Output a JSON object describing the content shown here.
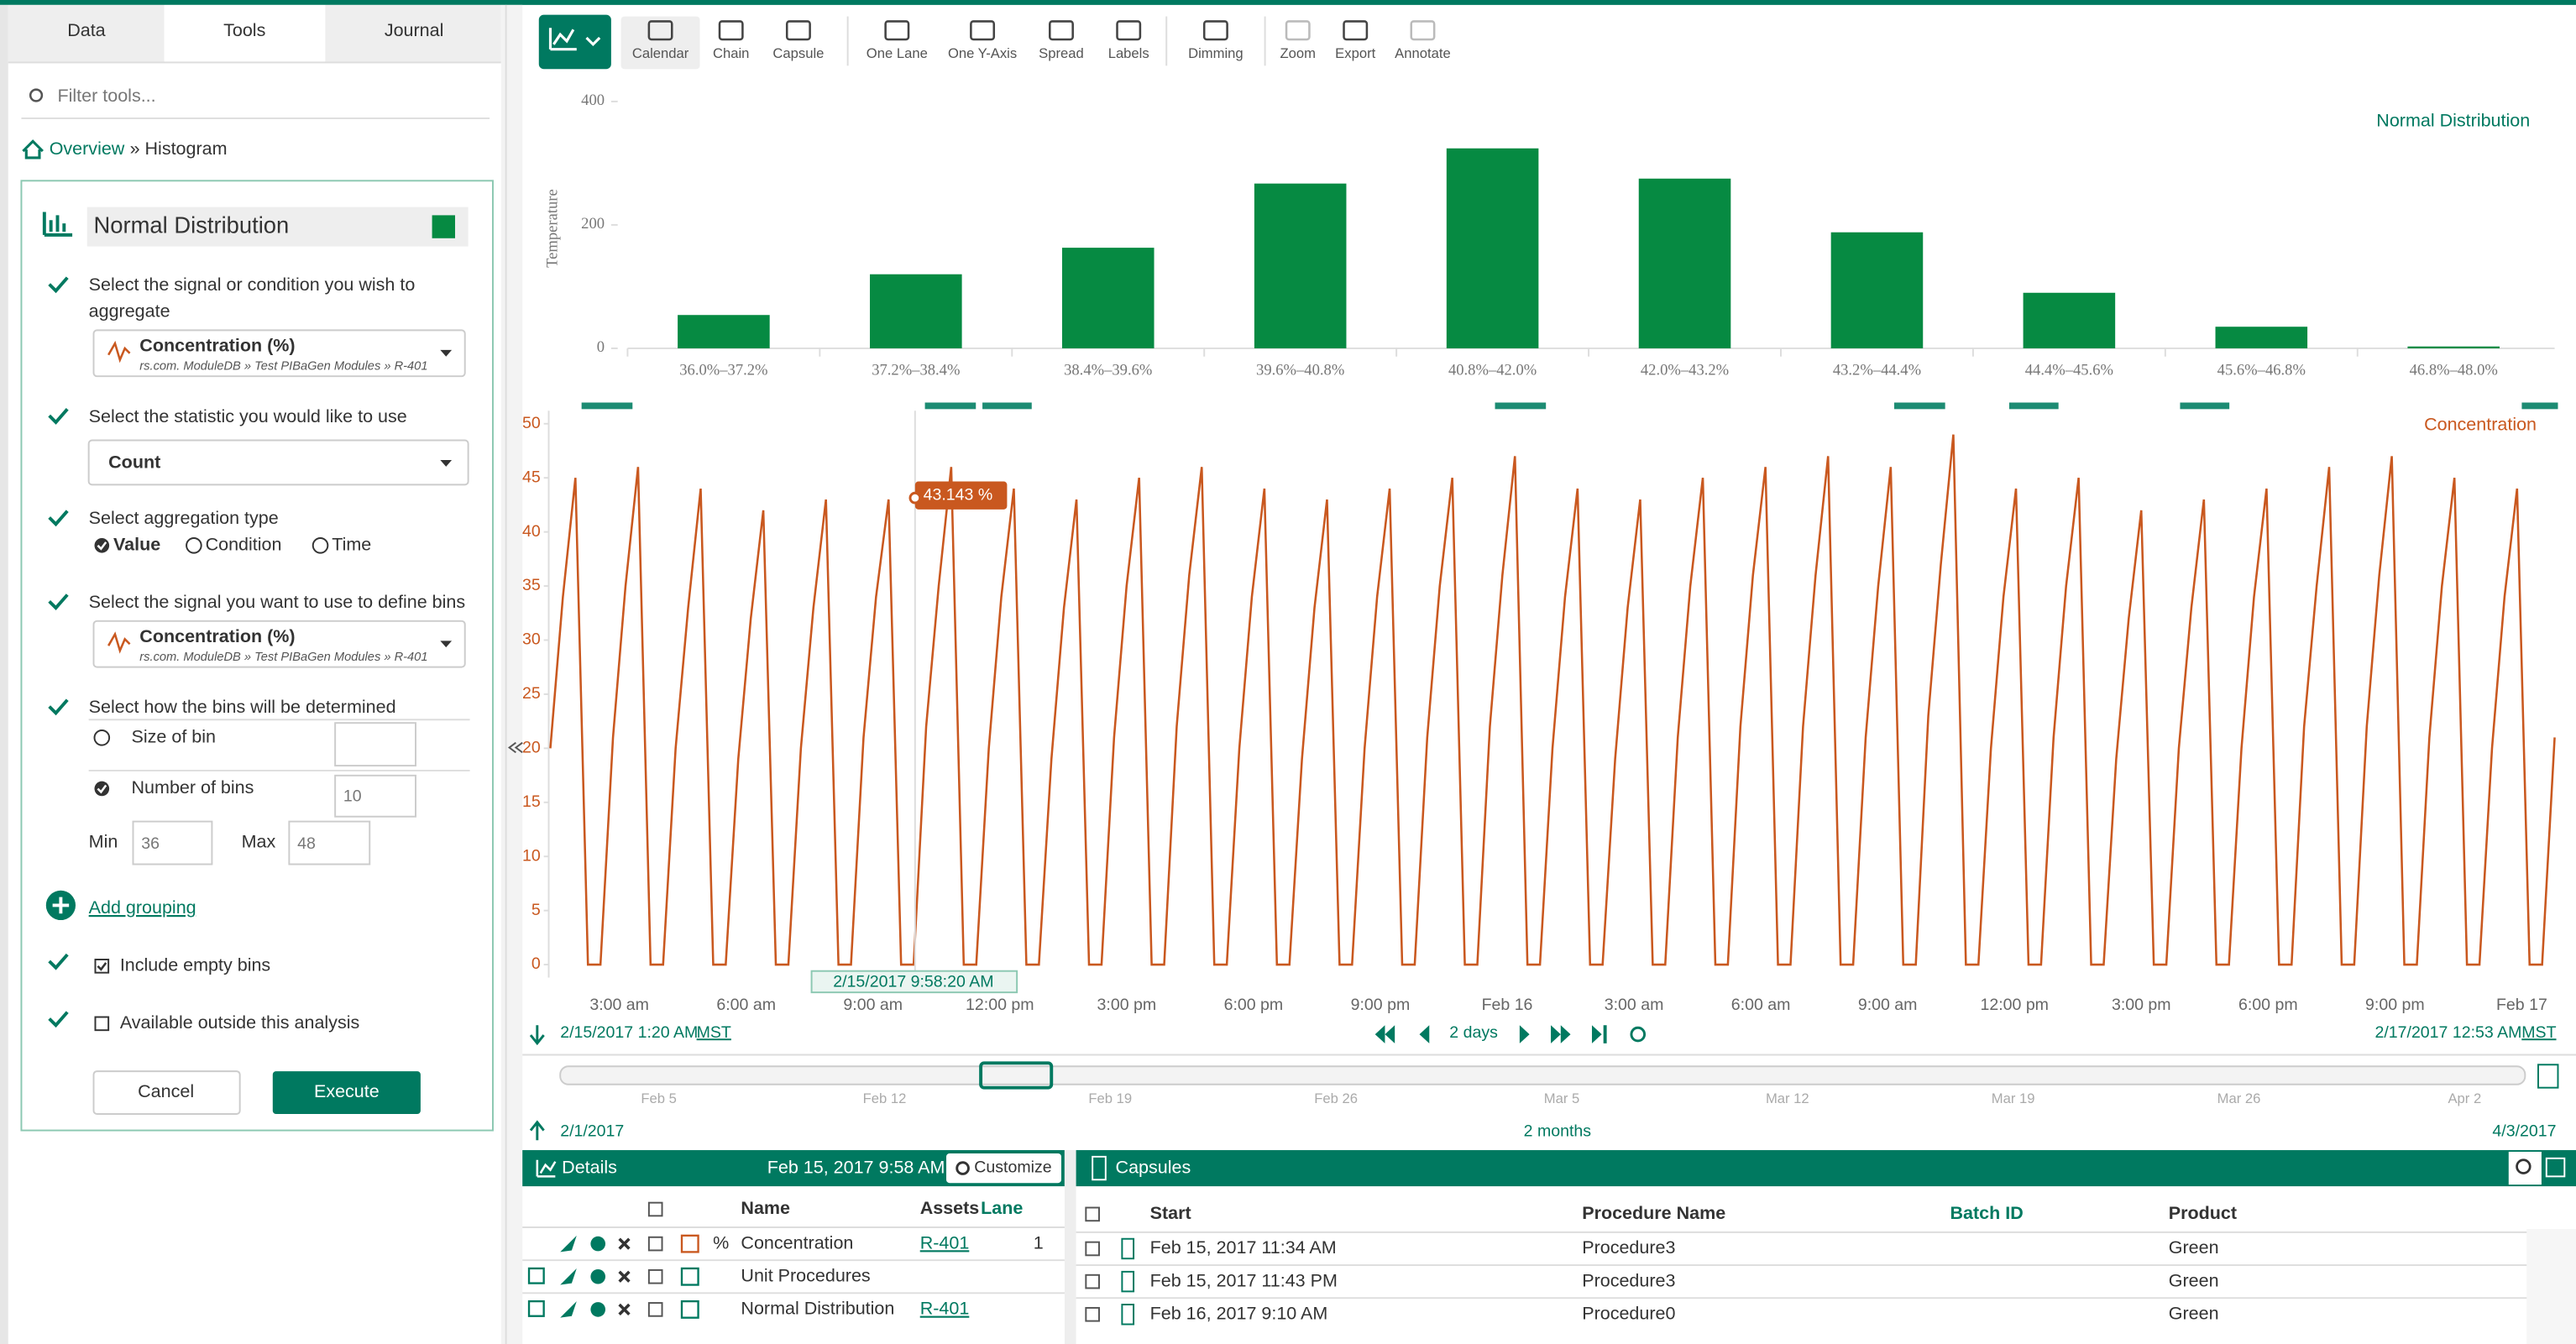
{
  "tabs": [
    "Data",
    "Tools",
    "Journal"
  ],
  "filter_placeholder": "Filter tools...",
  "breadcrumb": {
    "link": "Overview",
    "current": "» Histogram"
  },
  "form": {
    "name": "Normal Distribution",
    "signal_prompt": [
      "Select the signal or condition you wish to",
      "aggregate"
    ],
    "signal": {
      "name": "Concentration (%)",
      "path": "rs.com. ModuleDB » Test PIBaGen Modules » R-401"
    },
    "statistic_prompt": "Select the statistic you would like to use",
    "statistic": "Count",
    "aggregation_prompt": "Select aggregation type",
    "aggregation_options": [
      "Value",
      "Condition",
      "Time"
    ],
    "bins_signal_prompt": "Select the signal you want to use to define bins",
    "bins_signal": {
      "name": "Concentration (%)",
      "path": "rs.com. ModuleDB » Test PIBaGen Modules » R-401"
    },
    "bins_method_prompt": "Select how the bins will be determined",
    "size_of_bin_label": "Size of bin",
    "number_of_bins_label": "Number of bins",
    "number_of_bins": 10,
    "min_label": "Min",
    "min": 36,
    "max_label": "Max",
    "max": 48,
    "add_grouping": "Add grouping",
    "include_empty_bins": "Include empty bins",
    "available_outside": "Available outside this analysis",
    "cancel": "Cancel",
    "execute": "Execute"
  },
  "toolbar": [
    {
      "label": "Calendar",
      "enabled": true
    },
    {
      "label": "Chain",
      "enabled": true
    },
    {
      "label": "Capsule",
      "enabled": true
    },
    {
      "label": "One Lane",
      "enabled": true
    },
    {
      "label": "One Y-Axis",
      "enabled": true
    },
    {
      "label": "Spread",
      "enabled": true
    },
    {
      "label": "Labels",
      "enabled": true
    },
    {
      "label": "Dimming",
      "enabled": true
    },
    {
      "label": "Zoom",
      "enabled": false
    },
    {
      "label": "Export",
      "enabled": true
    },
    {
      "label": "Annotate",
      "enabled": false
    }
  ],
  "chart_data": [
    {
      "type": "bar",
      "legend": "Normal Distribution",
      "y_label": "Temperature",
      "color": "#068a42",
      "categories": [
        "36.0%–37.2%",
        "37.2%–38.4%",
        "38.4%–39.6%",
        "39.6%–40.8%",
        "40.8%–42.0%",
        "42.0%–43.2%",
        "43.2%–44.4%",
        "44.4%–45.6%",
        "45.6%–46.8%",
        "46.8%–48.0%"
      ],
      "values": [
        54,
        120,
        163,
        267,
        324,
        275,
        188,
        90,
        35,
        3
      ],
      "ylim": [
        0,
        410
      ],
      "yticks": [
        0,
        200,
        400
      ]
    },
    {
      "type": "line",
      "series": [
        {
          "name": "Concentration",
          "color": "#c9581f",
          "values": [
            20,
            34,
            45,
            0,
            0,
            21,
            35,
            46,
            0,
            0,
            20,
            33,
            44,
            0,
            0,
            19,
            32,
            42,
            0,
            0,
            20,
            33,
            43,
            0,
            0,
            21,
            34,
            43,
            0,
            0,
            22,
            35,
            46,
            0,
            0,
            20,
            34,
            44,
            0,
            0,
            19,
            33,
            43,
            0,
            0,
            21,
            35,
            45,
            0,
            0,
            22,
            36,
            46,
            0,
            0,
            20,
            34,
            44,
            0,
            0,
            19,
            33,
            43,
            0,
            0,
            20,
            34,
            44,
            0,
            0,
            21,
            35,
            45,
            0,
            0,
            22,
            36,
            47,
            0,
            0,
            20,
            34,
            44,
            0,
            0,
            19,
            33,
            43,
            0,
            0,
            21,
            35,
            45,
            0,
            0,
            22,
            36,
            46,
            0,
            0,
            22,
            36,
            47,
            0,
            0,
            21,
            35,
            46,
            0,
            0,
            23,
            37,
            49,
            0,
            0,
            20,
            34,
            44,
            0,
            0,
            21,
            35,
            45,
            0,
            0,
            19,
            32,
            42,
            0,
            0,
            20,
            33,
            43,
            0,
            0,
            20,
            34,
            44,
            0,
            0,
            22,
            35,
            46,
            0,
            0,
            22,
            36,
            47,
            0,
            0,
            21,
            35,
            45,
            0,
            0,
            20,
            34,
            44,
            0,
            0,
            21
          ]
        }
      ],
      "ylim": [
        -1.2,
        51.2
      ],
      "yticks": [
        0,
        5,
        10,
        15,
        20,
        25,
        30,
        35,
        40,
        45,
        50
      ],
      "x_tick_labels": [
        "3:00 am",
        "6:00 am",
        "9:00 am",
        "12:00 pm",
        "3:00 pm",
        "6:00 pm",
        "9:00 pm",
        "Feb 16",
        "3:00 am",
        "6:00 am",
        "9:00 am",
        "12:00 pm",
        "3:00 pm",
        "6:00 pm",
        "9:00 pm",
        "Feb 17"
      ],
      "cursor": {
        "time": "2/15/2017 9:58:20 AM",
        "value": 43.143,
        "value_label": "43.143 %"
      }
    }
  ],
  "time_range": {
    "start": "2/15/2017 1:20 AM",
    "end": "2/17/2017 12:53 AM",
    "zone": "MST",
    "duration": "2 days"
  },
  "timeline": {
    "months": [
      "Feb 5",
      "Feb 12",
      "Feb 19",
      "Feb 26",
      "Mar 5",
      "Mar 12",
      "Mar 19",
      "Mar 26",
      "Apr 2"
    ],
    "start": "2/1/2017",
    "end": "4/3/2017",
    "duration": "2 months"
  },
  "details": {
    "title": "Details",
    "timestamp": "Feb 15, 2017 9:58 AM",
    "customize": "Customize",
    "columns": [
      "Name",
      "Assets",
      "Lane"
    ],
    "rows": [
      {
        "unit": "%",
        "name": "Concentration",
        "asset": "R-401",
        "lane": 1
      },
      {
        "name": "Unit Procedures"
      },
      {
        "name": "Normal Distribution",
        "asset": "R-401"
      }
    ]
  },
  "capsules": {
    "title": "Capsules",
    "columns": [
      "Start",
      "Procedure Name",
      "Batch ID",
      "Product"
    ],
    "rows": [
      {
        "start": "Feb 15, 2017 11:34 AM",
        "procedure": "Procedure3",
        "product": "Green"
      },
      {
        "start": "Feb 15, 2017 11:43 PM",
        "procedure": "Procedure3",
        "product": "Green"
      },
      {
        "start": "Feb 16, 2017 9:10 AM",
        "procedure": "Procedure0",
        "product": "Green"
      }
    ]
  }
}
